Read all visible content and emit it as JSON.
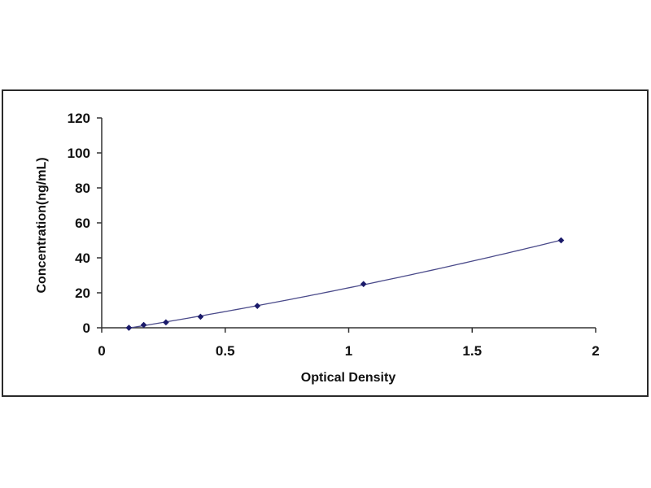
{
  "chart_data": {
    "type": "scatter",
    "title": "",
    "xlabel": "Optical Density",
    "ylabel": "Concentration(ng/mL)",
    "xlim": [
      0,
      2
    ],
    "ylim": [
      0,
      120
    ],
    "xticks": [
      "0",
      "0.5",
      "1",
      "1.5",
      "2"
    ],
    "yticks": [
      "0",
      "20",
      "40",
      "60",
      "80",
      "100",
      "120"
    ],
    "grid": false,
    "legend": "none",
    "series": [
      {
        "values": [
          {
            "x": 0.11,
            "y": 0.0
          },
          {
            "x": 0.17,
            "y": 1.6
          },
          {
            "x": 0.26,
            "y": 3.1
          },
          {
            "x": 0.4,
            "y": 6.3
          },
          {
            "x": 0.63,
            "y": 12.5
          },
          {
            "x": 1.06,
            "y": 25
          },
          {
            "x": 1.86,
            "y": 50
          }
        ],
        "trendline": "polynomial"
      }
    ],
    "colors": {
      "line": "#4a4a8a",
      "marker": "#1a1a6a",
      "axis": "#333333"
    }
  }
}
